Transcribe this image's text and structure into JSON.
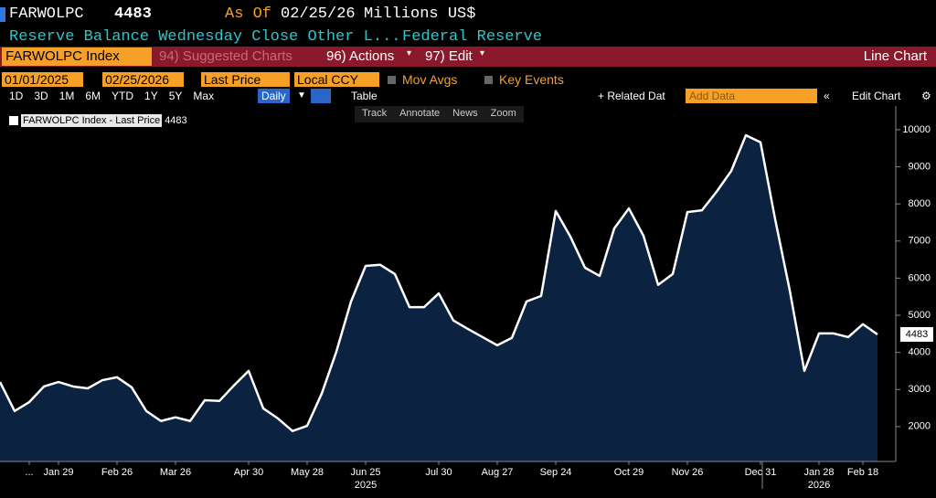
{
  "header": {
    "ticker": "FARWOLPC",
    "as_of_label": "As Of",
    "as_of": "02/25/26",
    "units": "Millions US$",
    "description": "Reserve Balance Wednesday Close Other L...",
    "source": "Federal Reserve"
  },
  "toolbar": {
    "security": "FARWOLPC Index",
    "suggested": "94) Suggested Charts",
    "actions": "96) Actions",
    "edit": "97) Edit",
    "chart_kind": "Line Chart",
    "start_date": "01/01/2025",
    "end_date": "02/25/2026",
    "field": "Last Price",
    "currency": "Local CCY",
    "mov_avgs": "Mov Avgs",
    "key_events": "Key Events",
    "ranges": [
      "1D",
      "3D",
      "1M",
      "6M",
      "YTD",
      "1Y",
      "5Y",
      "Max"
    ],
    "frequency": "Daily",
    "table": "Table",
    "related": "+ Related Dat",
    "add_data": "Add Data",
    "edit_chart": "Edit Chart",
    "tools": [
      "Track",
      "Annotate",
      "News",
      "Zoom"
    ]
  },
  "chart_data": {
    "type": "area",
    "legend": "FARWOLPC Index - Last Price",
    "color": "#ffffff",
    "fill": "#0c2241",
    "categories": [
      null,
      null,
      "...",
      null,
      "Jan 29",
      null,
      null,
      null,
      "Feb 26",
      null,
      null,
      null,
      "Mar 26",
      null,
      null,
      null,
      null,
      "Apr 30",
      null,
      null,
      null,
      "May 28",
      null,
      null,
      null,
      "Jun 25",
      null,
      null,
      null,
      null,
      "Jul 30",
      null,
      null,
      null,
      "Aug 27",
      null,
      null,
      null,
      "Sep 24",
      null,
      null,
      null,
      null,
      "Oct 29",
      null,
      null,
      null,
      "Nov 26",
      null,
      null,
      null,
      null,
      "Dec 31",
      null,
      null,
      null,
      "Jan 28",
      null,
      null,
      "Feb 18",
      null
    ],
    "values": [
      3200,
      2420,
      2660,
      3080,
      3200,
      3080,
      3030,
      3250,
      3330,
      3060,
      2420,
      2150,
      2250,
      2150,
      2710,
      2690,
      3110,
      3500,
      2490,
      2220,
      1880,
      2020,
      2890,
      4020,
      5370,
      6330,
      6360,
      6110,
      5220,
      5220,
      5590,
      4860,
      4630,
      4410,
      4190,
      4390,
      5370,
      5520,
      7810,
      7120,
      6280,
      6060,
      7340,
      7880,
      7140,
      5820,
      6110,
      7780,
      7830,
      8330,
      8890,
      9850,
      9660,
      7590,
      5670,
      3500,
      4510,
      4510,
      4410,
      4760,
      4483
    ],
    "year_labels": [
      "2025",
      "2026"
    ],
    "ylim": [
      1060,
      10590
    ],
    "yticks": [
      2000,
      3000,
      4000,
      5000,
      6000,
      7000,
      8000,
      9000,
      10000
    ],
    "grid": false
  }
}
